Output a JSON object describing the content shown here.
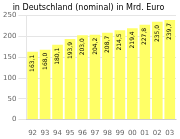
{
  "chart_data": {
    "type": "bar",
    "title": "in Deutschland (nominal) in Mrd. Euro",
    "categories": [
      "92",
      "93",
      "94",
      "95",
      "96",
      "97",
      "98",
      "99",
      "00",
      "01",
      "02",
      "03"
    ],
    "values": [
      163.1,
      168.0,
      180.1,
      193.9,
      203.0,
      204.2,
      208.7,
      214.5,
      219.4,
      227.8,
      235.0,
      239.7
    ],
    "value_labels": [
      "163,1",
      "168,0",
      "180,1",
      "193,9",
      "203,0",
      "204,2",
      "208,7",
      "214,5",
      "219,4",
      "227,8",
      "235,0",
      "239,7"
    ],
    "data_labels": true,
    "color": "#ffff66",
    "ylim": [
      0,
      250
    ],
    "yticks": [
      0,
      50,
      100,
      150,
      200,
      250
    ],
    "grid": true
  }
}
